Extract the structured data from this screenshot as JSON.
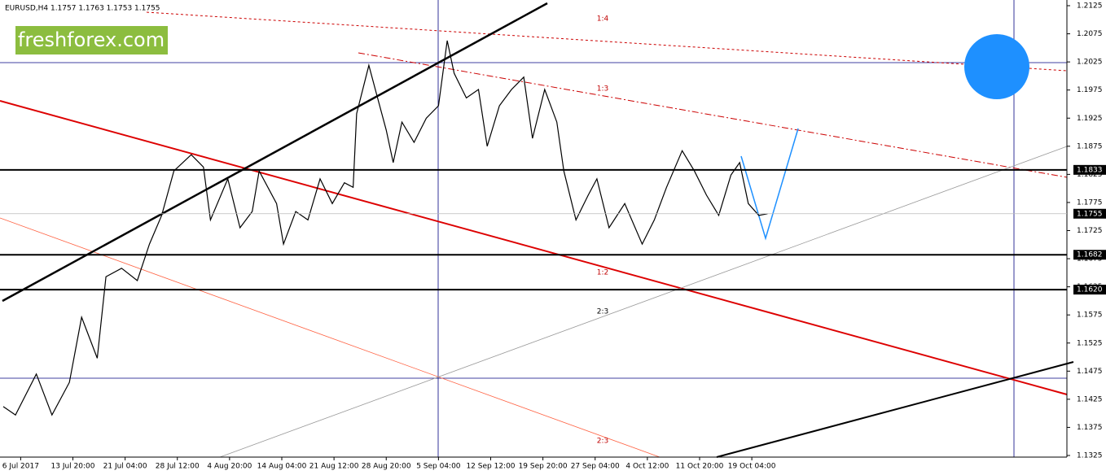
{
  "chart_data": {
    "type": "line",
    "title": "EURUSD,H4  1.1757 1.1763 1.1753 1.1755",
    "logo": "freshforex.com",
    "annotations": [
      "1:4",
      "1:3",
      "1:2",
      "2:3",
      "2:3"
    ],
    "series": [
      {
        "name": "EURUSD",
        "color": "#000000",
        "x": [
          0,
          7,
          19,
          28,
          38,
          45,
          54,
          59,
          68,
          77,
          84,
          91,
          98,
          108,
          115,
          119,
          129,
          136,
          143,
          147,
          157,
          161,
          168,
          175,
          182,
          189,
          196,
          201,
          203,
          210,
          215,
          220,
          224,
          229,
          236,
          243,
          250,
          255,
          259,
          266,
          273,
          278,
          285,
          292,
          299,
          304,
          311,
          318,
          322,
          329,
          336,
          341,
          348,
          357,
          367,
          374,
          381,
          390,
          397,
          404,
          411,
          418,
          423,
          428,
          434,
          439
        ],
        "values": [
          1.1412,
          1.1397,
          1.147,
          1.1397,
          1.1455,
          1.1571,
          1.1498,
          1.1643,
          1.1658,
          1.1636,
          1.1701,
          1.1752,
          1.1831,
          1.186,
          1.1838,
          1.1744,
          1.1817,
          1.173,
          1.1759,
          1.1831,
          1.1773,
          1.1701,
          1.1759,
          1.1744,
          1.1817,
          1.1773,
          1.181,
          1.1802,
          1.1933,
          1.2019,
          1.1961,
          1.1904,
          1.1846,
          1.1918,
          1.1882,
          1.1925,
          1.1947,
          1.2063,
          1.2005,
          1.1961,
          1.1976,
          1.1875,
          1.1947,
          1.1976,
          1.1998,
          1.1889,
          1.1976,
          1.1918,
          1.1831,
          1.1744,
          1.1788,
          1.1817,
          1.173,
          1.1773,
          1.1701,
          1.1744,
          1.1802,
          1.1867,
          1.1831,
          1.1788,
          1.1752,
          1.1824,
          1.1846,
          1.1773,
          1.1752,
          1.1755
        ]
      }
    ],
    "levels": [
      1.1833,
      1.1682,
      {
        "value": 1.162,
        "label": "1.1620"
      }
    ],
    "current": 1.1755,
    "xlim": [
      0,
      611
    ],
    "ylim": [
      1.1325,
      1.2125
    ],
    "yticks": [
      1.2125,
      1.2075,
      1.2025,
      1.1975,
      1.1925,
      1.1875,
      1.1825,
      1.1775,
      1.1725,
      1.1675,
      1.1625,
      1.1575,
      1.1525,
      1.1475,
      1.1425,
      1.1375,
      1.1325
    ],
    "xticks": [
      {
        "value": 10,
        "label": "6 Jul 2017"
      },
      {
        "value": 40,
        "label": "13 Jul 20:00"
      },
      {
        "value": 70,
        "label": "21 Jul 04:00"
      },
      {
        "value": 100,
        "label": "28 Jul 12:00"
      },
      {
        "value": 130,
        "label": "4 Aug 20:00"
      },
      {
        "value": 160,
        "label": "14 Aug 04:00"
      },
      {
        "value": 190,
        "label": "21 Aug 12:00"
      },
      {
        "value": 220,
        "label": "28 Aug 20:00"
      },
      {
        "value": 250,
        "label": "5 Sep 04:00"
      },
      {
        "value": 280,
        "label": "12 Sep 12:00"
      },
      {
        "value": 310,
        "label": "19 Sep 20:00"
      },
      {
        "value": 340,
        "label": "27 Sep 04:00"
      },
      {
        "value": 370,
        "label": "4 Oct 12:00"
      },
      {
        "value": 400,
        "label": "11 Oct 20:00"
      },
      {
        "value": 430,
        "label": "19 Oct 04:00"
      }
    ]
  }
}
